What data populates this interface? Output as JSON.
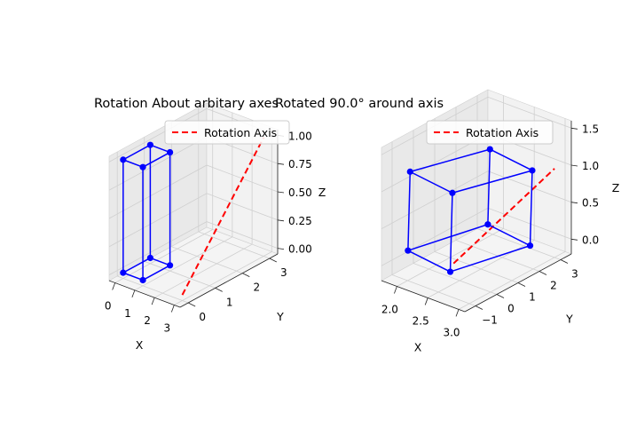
{
  "chart_data": [
    {
      "type": "scatter",
      "projection": "3d",
      "title": "Rotation About arbitary axes",
      "xlabel": "X",
      "ylabel": "Y",
      "zlabel": "Z",
      "xlim": [
        -0.3,
        3.3
      ],
      "ylim": [
        -0.3,
        3.3
      ],
      "zlim": [
        -0.05,
        1.05
      ],
      "xticks": [
        0,
        1,
        2,
        3
      ],
      "yticks": [
        0,
        1,
        2,
        3
      ],
      "zticks": [
        0.0,
        0.25,
        0.5,
        0.75,
        1.0
      ],
      "xtick_labels": [
        "0",
        "1",
        "2",
        "3"
      ],
      "ytick_labels": [
        "0",
        "1",
        "2",
        "3"
      ],
      "ztick_labels": [
        "0.00",
        "0.25",
        "0.50",
        "0.75",
        "1.00"
      ],
      "grid": true,
      "legend": {
        "placement": "top-right",
        "entries": [
          "Rotation Axis"
        ]
      },
      "axis_line": {
        "name": "Rotation Axis",
        "color": "#ff0000",
        "style": "dashed",
        "points": [
          [
            3,
            0,
            0
          ],
          [
            3,
            3,
            1
          ]
        ]
      },
      "cube": {
        "color": "#0000ff",
        "vertices": [
          [
            0,
            0,
            0
          ],
          [
            1,
            0,
            0
          ],
          [
            1,
            1,
            0
          ],
          [
            0,
            1,
            0
          ],
          [
            0,
            0,
            1
          ],
          [
            1,
            0,
            1
          ],
          [
            1,
            1,
            1
          ],
          [
            0,
            1,
            1
          ]
        ],
        "edges": [
          [
            0,
            1
          ],
          [
            1,
            2
          ],
          [
            2,
            3
          ],
          [
            3,
            0
          ],
          [
            4,
            5
          ],
          [
            5,
            6
          ],
          [
            6,
            7
          ],
          [
            7,
            4
          ],
          [
            0,
            4
          ],
          [
            1,
            5
          ],
          [
            2,
            6
          ],
          [
            3,
            7
          ]
        ]
      },
      "view": {
        "elev": 30,
        "azim": -60
      }
    },
    {
      "type": "scatter",
      "projection": "3d",
      "title": "Rotated 90.0° around axis",
      "xlabel": "X",
      "ylabel": "Y",
      "zlabel": "Z",
      "xlim": [
        1.75,
        3.1
      ],
      "ylim": [
        -1.5,
        3.5
      ],
      "zlim": [
        -0.2,
        1.6
      ],
      "xticks": [
        2.0,
        2.5,
        3.0
      ],
      "yticks": [
        -1,
        0,
        1,
        2,
        3
      ],
      "zticks": [
        0.0,
        0.5,
        1.0,
        1.5
      ],
      "xtick_labels": [
        "2.0",
        "2.5",
        "3.0"
      ],
      "ytick_labels": [
        "−1",
        "0",
        "1",
        "2",
        "3"
      ],
      "ztick_labels": [
        "0.0",
        "0.5",
        "1.0",
        "1.5"
      ],
      "grid": true,
      "legend": {
        "placement": "top-right",
        "entries": [
          "Rotation Axis"
        ]
      },
      "axis_line": {
        "name": "Rotation Axis",
        "color": "#ff0000",
        "style": "dashed",
        "points": [
          [
            2.4,
            0,
            0
          ],
          [
            3,
            3,
            1
          ]
        ]
      },
      "cube": {
        "color": "#0000ff",
        "vertices": [
          [
            2.45,
            -0.2,
            1.0
          ],
          [
            1.8,
            -0.3,
            1.1
          ],
          [
            1.8,
            -0.4,
            0.05
          ],
          [
            2.45,
            -0.3,
            -0.05
          ],
          [
            2.95,
            2.1,
            1.1
          ],
          [
            2.3,
            2.0,
            1.2
          ],
          [
            2.3,
            1.9,
            0.2
          ],
          [
            2.95,
            2.0,
            0.1
          ]
        ],
        "edges": [
          [
            0,
            1
          ],
          [
            1,
            2
          ],
          [
            2,
            3
          ],
          [
            3,
            0
          ],
          [
            4,
            5
          ],
          [
            5,
            6
          ],
          [
            6,
            7
          ],
          [
            7,
            4
          ],
          [
            0,
            4
          ],
          [
            1,
            5
          ],
          [
            2,
            6
          ],
          [
            3,
            7
          ]
        ]
      },
      "view": {
        "elev": 30,
        "azim": -60
      }
    }
  ]
}
